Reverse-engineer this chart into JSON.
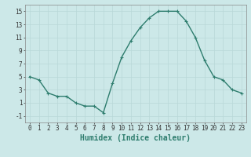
{
  "x": [
    0,
    1,
    2,
    3,
    4,
    5,
    6,
    7,
    8,
    9,
    10,
    11,
    12,
    13,
    14,
    15,
    16,
    17,
    18,
    19,
    20,
    21,
    22,
    23
  ],
  "y": [
    5,
    4.5,
    2.5,
    2,
    2,
    1,
    0.5,
    0.5,
    -0.5,
    4,
    8,
    10.5,
    12.5,
    14,
    15,
    15,
    15,
    13.5,
    11,
    7.5,
    5,
    4.5,
    3,
    2.5
  ],
  "line_color": "#2e7d6e",
  "marker_color": "#2e7d6e",
  "bg_color": "#cce8e8",
  "grid_color": "#b8d8d8",
  "xlabel": "Humidex (Indice chaleur)",
  "xlim": [
    -0.5,
    23.5
  ],
  "ylim": [
    -2,
    16
  ],
  "yticks": [
    -1,
    1,
    3,
    5,
    7,
    9,
    11,
    13,
    15
  ],
  "xticks": [
    0,
    1,
    2,
    3,
    4,
    5,
    6,
    7,
    8,
    9,
    10,
    11,
    12,
    13,
    14,
    15,
    16,
    17,
    18,
    19,
    20,
    21,
    22,
    23
  ],
  "xtick_labels": [
    "0",
    "1",
    "2",
    "3",
    "4",
    "5",
    "6",
    "7",
    "8",
    "9",
    "10",
    "11",
    "12",
    "13",
    "14",
    "15",
    "16",
    "17",
    "18",
    "19",
    "20",
    "21",
    "22",
    "23"
  ],
  "xlabel_fontsize": 7,
  "tick_fontsize": 5.5,
  "line_width": 1.0,
  "marker_size": 2.5
}
